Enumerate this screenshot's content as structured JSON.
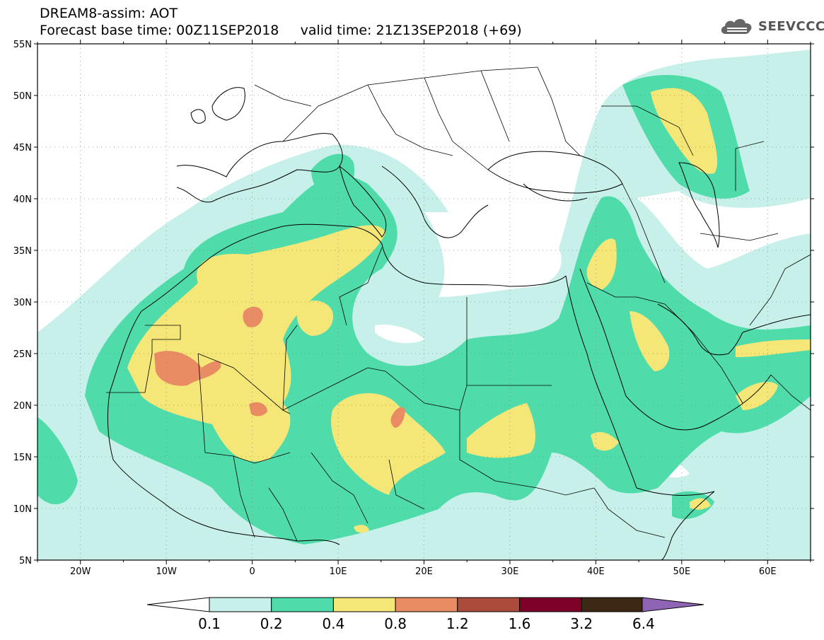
{
  "header": {
    "title": "DREAM8-assim: AOT",
    "subtitle": "Forecast base time: 00Z11SEP2018     valid time: 21Z13SEP2018 (+69)",
    "logo_text": "SEEVCCC",
    "logo_icon": "cloud-icon"
  },
  "map": {
    "lon_range": [
      -25,
      65
    ],
    "lat_range": [
      5,
      55
    ],
    "lat_labels": [
      "55N",
      "50N",
      "45N",
      "40N",
      "35N",
      "30N",
      "25N",
      "20N",
      "15N",
      "10N",
      "5N"
    ],
    "lat_values": [
      55,
      50,
      45,
      40,
      35,
      30,
      25,
      20,
      15,
      10,
      5
    ],
    "lon_labels": [
      "20W",
      "10W",
      "0",
      "10E",
      "20E",
      "30E",
      "40E",
      "50E",
      "60E"
    ],
    "lon_values": [
      -20,
      -10,
      0,
      10,
      20,
      30,
      40,
      50,
      60
    ]
  },
  "colorbar": {
    "labels": [
      "0.1",
      "0.2",
      "0.4",
      "0.8",
      "1.2",
      "1.6",
      "3.2",
      "6.4"
    ],
    "colors": [
      "#c8f0ea",
      "#50dcaa",
      "#f5e678",
      "#e98c64",
      "#aa4b3c",
      "#7d0028",
      "#3c2814",
      "#9064b4"
    ],
    "under_color": "#ffffff"
  },
  "colors": {
    "c1": "#c8f0ea",
    "c2": "#50dcaa",
    "c3": "#f5e678",
    "c4": "#e98c64",
    "land": "#ffffff",
    "line": "#000000"
  }
}
